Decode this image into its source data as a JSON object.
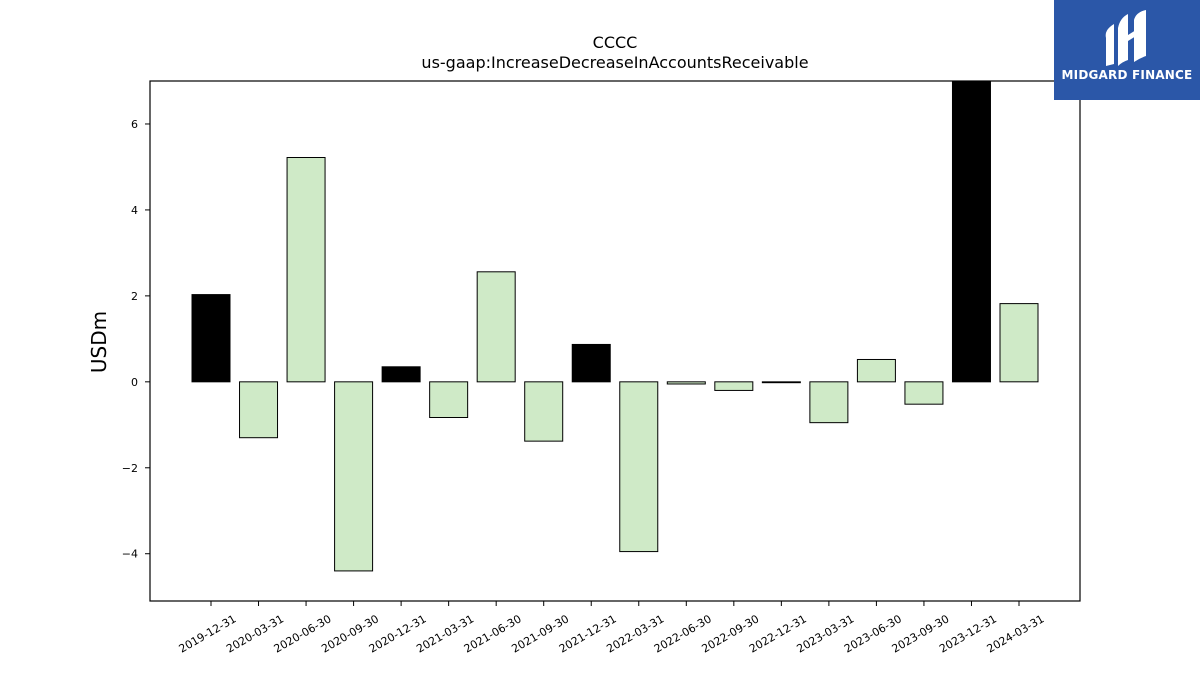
{
  "chart_data": {
    "type": "bar",
    "title": "CCCC",
    "subtitle": "us-gaap:IncreaseDecreaseInAccountsReceivable",
    "xlabel": "",
    "ylabel": "USDm",
    "ylim": [
      -5.1,
      7.0
    ],
    "yticks": [
      -4,
      -2,
      0,
      2,
      4,
      6
    ],
    "categories": [
      "2019-12-31",
      "2020-03-31",
      "2020-06-30",
      "2020-09-30",
      "2020-12-31",
      "2021-03-31",
      "2021-06-30",
      "2021-09-30",
      "2021-12-31",
      "2022-03-31",
      "2022-06-30",
      "2022-09-30",
      "2022-12-31",
      "2023-03-31",
      "2023-06-30",
      "2023-09-30",
      "2023-12-31",
      "2024-03-31"
    ],
    "values": [
      2.03,
      -1.3,
      5.22,
      -4.4,
      0.35,
      -0.83,
      2.56,
      -1.38,
      0.87,
      -3.95,
      -0.05,
      -0.2,
      -0.02,
      -0.95,
      0.52,
      -0.52,
      7.0,
      1.82
    ],
    "bar_colors": [
      "#000000",
      "#cfeac7",
      "#cfeac7",
      "#cfeac7",
      "#000000",
      "#cfeac7",
      "#cfeac7",
      "#cfeac7",
      "#000000",
      "#cfeac7",
      "#cfeac7",
      "#cfeac7",
      "#cfeac7",
      "#cfeac7",
      "#cfeac7",
      "#cfeac7",
      "#000000",
      "#cfeac7"
    ],
    "grid": false,
    "legend": "none"
  },
  "logo": {
    "text": "MIDGARD FINANCE",
    "background": "#2b57a8"
  }
}
